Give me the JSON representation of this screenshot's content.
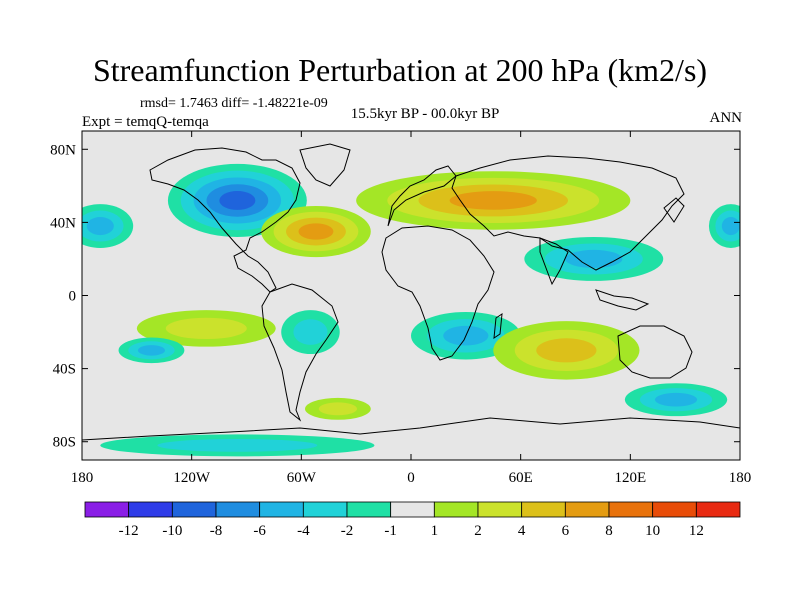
{
  "chart_data": {
    "type": "heatmap",
    "title": "Streamfunction Perturbation at 200 hPa (km2/s)",
    "stats_line": "rmsd= 1.7463 diff= -1.48221e-09",
    "experiment_line": "Expt = temqQ-temqa",
    "period_line": "15.5kyr BP - 00.0kyr BP",
    "season": "ANN",
    "x_ticks": [
      {
        "value": -180,
        "label": "180"
      },
      {
        "value": -120,
        "label": "120W"
      },
      {
        "value": -60,
        "label": "60W"
      },
      {
        "value": 0,
        "label": "0"
      },
      {
        "value": 60,
        "label": "60E"
      },
      {
        "value": 120,
        "label": "120E"
      },
      {
        "value": 180,
        "label": "180"
      }
    ],
    "y_ticks": [
      {
        "value": 80,
        "label": "80N"
      },
      {
        "value": 40,
        "label": "40N"
      },
      {
        "value": 0,
        "label": "0"
      },
      {
        "value": -40,
        "label": "40S"
      },
      {
        "value": -80,
        "label": "80S"
      }
    ],
    "xlim": [
      -180,
      180
    ],
    "ylim": [
      -90,
      90
    ],
    "colorbar": {
      "colors": [
        "#8a1ee6",
        "#2f3ce8",
        "#1f64dc",
        "#1f8de0",
        "#20b4e4",
        "#21d2d8",
        "#1fe0a5",
        "#e6e6e6",
        "#a4e626",
        "#cbe22c",
        "#dcc01a",
        "#e49c12",
        "#e8720c",
        "#e84c08",
        "#e82a12"
      ],
      "labels": [
        "-12",
        "-10",
        "-8",
        "-6",
        "-4",
        "-2",
        "-1",
        "1",
        "2",
        "4",
        "6",
        "8",
        "10",
        "12"
      ]
    },
    "anomalies": [
      {
        "lon": -95,
        "lat": 52,
        "rlon": 38,
        "rlat": 20,
        "level": -8
      },
      {
        "lon": -52,
        "lat": 35,
        "rlon": 30,
        "rlat": 14,
        "level": 6
      },
      {
        "lon": 45,
        "lat": 52,
        "rlon": 75,
        "rlat": 16,
        "level": 6
      },
      {
        "lon": 100,
        "lat": 20,
        "rlon": 38,
        "rlat": 12,
        "level": -4
      },
      {
        "lon": 30,
        "lat": -22,
        "rlon": 30,
        "rlat": 13,
        "level": -4
      },
      {
        "lon": 85,
        "lat": -30,
        "rlon": 40,
        "rlat": 16,
        "level": 4
      },
      {
        "lon": -112,
        "lat": -18,
        "rlon": 38,
        "rlat": 10,
        "level": 2
      },
      {
        "lon": -142,
        "lat": -30,
        "rlon": 18,
        "rlat": 7,
        "level": -4
      },
      {
        "lon": -170,
        "lat": 38,
        "rlon": 18,
        "rlat": 12,
        "level": -4
      },
      {
        "lon": 175,
        "lat": 38,
        "rlon": 12,
        "rlat": 12,
        "level": -4
      },
      {
        "lon": 145,
        "lat": -57,
        "rlon": 28,
        "rlat": 9,
        "level": -4
      },
      {
        "lon": -55,
        "lat": -20,
        "rlon": 16,
        "rlat": 12,
        "level": -2
      },
      {
        "lon": -40,
        "lat": -62,
        "rlon": 18,
        "rlat": 6,
        "level": 2
      },
      {
        "lon": -95,
        "lat": -82,
        "rlon": 75,
        "rlat": 6,
        "level": -2
      }
    ]
  }
}
